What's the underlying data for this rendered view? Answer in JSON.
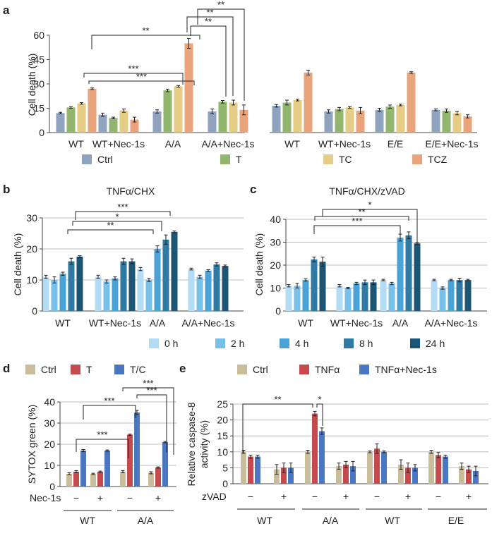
{
  "panel_labels": {
    "a": "a",
    "b": "b",
    "c": "c",
    "d": "d",
    "e": "e"
  },
  "colors": {
    "ctrl_a": "#8fa3bf",
    "t_a": "#93b66f",
    "tc_a": "#e5cd86",
    "tcz_a": "#e9a47c",
    "h0": "#b4dcf5",
    "h2": "#77c0ea",
    "h4": "#4aa3d6",
    "h8": "#2f7aa3",
    "h24": "#1d5575",
    "ctrl_d": "#cabd9c",
    "t_d": "#c6494d",
    "tc_d": "#4a76c2"
  },
  "chart_data": [
    {
      "id": "a-left",
      "type": "bar",
      "ylabel": "Cell death (%)",
      "ylim": [
        0,
        60
      ],
      "yticks": [
        "0",
        "15",
        "30",
        "45",
        "60"
      ],
      "categories": [
        "WT",
        "WT+Nec-1s",
        "A/A",
        "A/A+Nec-1s"
      ],
      "series": [
        {
          "name": "Ctrl",
          "values": [
            12,
            11,
            13,
            13
          ],
          "errors": [
            0.5,
            1,
            1,
            1.5
          ]
        },
        {
          "name": "T",
          "values": [
            15.5,
            9,
            26,
            19
          ],
          "errors": [
            0.5,
            0.5,
            0.8,
            0.8
          ]
        },
        {
          "name": "TC",
          "values": [
            18,
            13.5,
            28.5,
            18.5
          ],
          "errors": [
            0.5,
            1,
            0.5,
            1.5
          ]
        },
        {
          "name": "TCZ",
          "values": [
            27,
            8,
            55,
            14
          ],
          "errors": [
            0.5,
            1.5,
            3,
            3
          ]
        }
      ],
      "significance": [
        "***",
        "***",
        "**",
        "**",
        "**",
        "**"
      ]
    },
    {
      "id": "a-right",
      "type": "bar",
      "ylim": [
        0,
        60
      ],
      "categories": [
        "WT",
        "WT+Nec-1s",
        "E/E",
        "E/E+Nec-1s"
      ],
      "series": [
        {
          "name": "Ctrl",
          "values": [
            16.5,
            13,
            14,
            14
          ],
          "errors": [
            0.8,
            1,
            1,
            0.6
          ]
        },
        {
          "name": "T",
          "values": [
            18.5,
            14.5,
            16,
            13.5
          ],
          "errors": [
            1.5,
            1,
            1,
            1
          ]
        },
        {
          "name": "TC",
          "values": [
            20,
            15.5,
            17,
            12
          ],
          "errors": [
            0.5,
            0.5,
            0.5,
            1
          ]
        },
        {
          "name": "TCZ",
          "values": [
            37,
            13.5,
            37,
            10
          ],
          "errors": [
            1.5,
            2,
            0.5,
            1
          ]
        }
      ],
      "legend": [
        "Ctrl",
        "T",
        "TC",
        "TCZ"
      ]
    },
    {
      "id": "b",
      "type": "bar",
      "title": "TNFα/CHX",
      "ylabel": "Cell death (%)",
      "ylim": [
        0,
        30
      ],
      "yticks": [
        "0",
        "10",
        "20",
        "30"
      ],
      "categories": [
        "WT",
        "WT+Nec-1s",
        "A/A",
        "A/A+Nec-1s"
      ],
      "series": [
        {
          "name": "0 h",
          "values": [
            11,
            11,
            13.5,
            13.5
          ],
          "errors": [
            0.5,
            0.5,
            0.5,
            0.3
          ]
        },
        {
          "name": "2 h",
          "values": [
            10,
            9.5,
            10,
            11
          ],
          "errors": [
            1,
            0.5,
            0.5,
            0.5
          ]
        },
        {
          "name": "4 h",
          "values": [
            12,
            10.5,
            20,
            13
          ],
          "errors": [
            0.5,
            0.5,
            1,
            0.3
          ]
        },
        {
          "name": "8 h",
          "values": [
            16,
            16,
            23,
            15
          ],
          "errors": [
            1,
            1,
            1.5,
            0.5
          ]
        },
        {
          "name": "24 h",
          "values": [
            17.5,
            16,
            25.5,
            14.5
          ],
          "errors": [
            0.3,
            0.8,
            0.3,
            0.3
          ]
        }
      ],
      "significance": [
        "**",
        "*",
        "***"
      ]
    },
    {
      "id": "c",
      "type": "bar",
      "title": "TNFα/CHX/zVAD",
      "ylabel": "Cell death (%)",
      "ylim": [
        0,
        40
      ],
      "yticks": [
        "0",
        "10",
        "20",
        "30",
        "40"
      ],
      "categories": [
        "WT",
        "WT+Nec-1s",
        "A/A",
        "A/A+Nec-1s"
      ],
      "series": [
        {
          "name": "0 h",
          "values": [
            11,
            11,
            13.5,
            13.5
          ],
          "errors": [
            0.5,
            0.5,
            0.3,
            0.3
          ]
        },
        {
          "name": "2 h",
          "values": [
            11,
            10,
            12,
            10
          ],
          "errors": [
            1,
            0.3,
            0.5,
            0.5
          ]
        },
        {
          "name": "4 h",
          "values": [
            13.5,
            12,
            32,
            13.5
          ],
          "errors": [
            0.5,
            0.5,
            1.5,
            0.3
          ]
        },
        {
          "name": "8 h",
          "values": [
            22.5,
            12.5,
            33,
            13.5
          ],
          "errors": [
            1,
            1,
            1.5,
            0.8
          ]
        },
        {
          "name": "24 h",
          "values": [
            21.5,
            12.5,
            29.5,
            13.5
          ],
          "errors": [
            2,
            1,
            0.5,
            0.3
          ]
        }
      ],
      "legend": [
        "0 h",
        "2 h",
        "4 h",
        "8 h",
        "24 h"
      ],
      "significance": [
        "***",
        "**",
        "*"
      ]
    },
    {
      "id": "d",
      "type": "bar",
      "ylabel": "SYTOX green (%)",
      "ylim": [
        0,
        40
      ],
      "yticks": [
        "0",
        "10",
        "20",
        "30",
        "40"
      ],
      "row_label": "Nec-1s",
      "categories": [
        "−",
        "+",
        "−",
        "+"
      ],
      "groups": [
        "WT",
        "A/A"
      ],
      "series": [
        {
          "name": "Ctrl",
          "values": [
            6,
            6,
            7,
            6.5
          ],
          "errors": [
            0.5,
            0.3,
            0.5,
            0.5
          ]
        },
        {
          "name": "T",
          "values": [
            7,
            7,
            24.5,
            9
          ],
          "errors": [
            0.5,
            0.3,
            0.3,
            0.3
          ]
        },
        {
          "name": "T/C",
          "values": [
            17,
            17,
            35,
            21
          ],
          "errors": [
            0.5,
            0.3,
            1,
            0.3
          ]
        }
      ],
      "legend": [
        "Ctrl",
        "T",
        "T/C"
      ],
      "significance": [
        "***",
        "***",
        "***",
        "***"
      ]
    },
    {
      "id": "e",
      "type": "bar",
      "ylabel": "Relative caspase-8 activity (%)",
      "ylabel_lines": [
        "Relative caspase-8",
        "activity (%)"
      ],
      "ylim": [
        0,
        25
      ],
      "yticks": [
        "0",
        "5",
        "10",
        "15",
        "20",
        "25"
      ],
      "row_label": "zVAD",
      "categories": [
        "−",
        "+",
        "−",
        "+",
        "−",
        "+",
        "−",
        "+"
      ],
      "groups": [
        "WT",
        "A/A",
        "WT",
        "E/E"
      ],
      "series": [
        {
          "name": "Ctrl",
          "values": [
            10,
            4.5,
            10,
            5.5,
            10,
            6,
            10,
            5.5
          ],
          "errors": [
            0.5,
            1.5,
            0.5,
            1,
            0.3,
            1.5,
            0.5,
            1
          ]
        },
        {
          "name": "TNFα",
          "values": [
            8.5,
            5,
            22,
            6,
            11,
            5,
            9,
            4.5
          ],
          "errors": [
            0.5,
            1.5,
            0.7,
            1,
            1.5,
            1.5,
            0.8,
            1
          ]
        },
        {
          "name": "TNFα+Nec-1s",
          "values": [
            8.5,
            5,
            16.5,
            5.5,
            10,
            5,
            8.5,
            4
          ],
          "errors": [
            0.5,
            1.5,
            1,
            1.5,
            0.3,
            1,
            0.5,
            1.5
          ]
        }
      ],
      "legend": [
        "Ctrl",
        "TNFα",
        "TNFα+Nec-1s"
      ],
      "significance": [
        "**",
        "*"
      ]
    }
  ]
}
